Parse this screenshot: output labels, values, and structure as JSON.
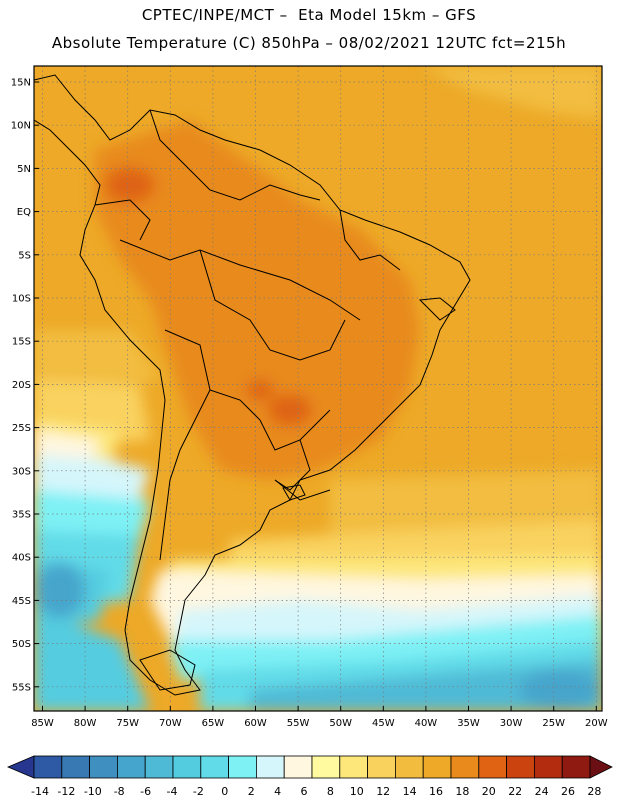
{
  "header": {
    "title_line1": "CPTEC/INPE/MCT –  Eta Model 15km – GFS",
    "title_line2": "Absolute Temperature (C) 850hPa – 08/02/2021 12UTC fct=215h"
  },
  "map": {
    "lat_labels": [
      "15N",
      "10N",
      "5N",
      "EQ",
      "5S",
      "10S",
      "15S",
      "20S",
      "25S",
      "30S",
      "35S",
      "40S",
      "45S",
      "50S",
      "55S"
    ],
    "lon_labels": [
      "85W",
      "80W",
      "75W",
      "70W",
      "65W",
      "60W",
      "55W",
      "50W",
      "45W",
      "40W",
      "35W",
      "30W",
      "25W",
      "20W"
    ],
    "units": "C",
    "variable": "Absolute Temperature"
  },
  "colorbar": {
    "ticks": [
      "-14",
      "-12",
      "-10",
      "-8",
      "-6",
      "-4",
      "-2",
      "0",
      "2",
      "4",
      "6",
      "8",
      "10",
      "12",
      "14",
      "16",
      "18",
      "20",
      "22",
      "24",
      "26",
      "28"
    ],
    "colors": [
      "#27378f",
      "#2e5aa5",
      "#3879b3",
      "#3f8fc0",
      "#46a5cc",
      "#4fbad6",
      "#54cce0",
      "#62dbe8",
      "#7ef1f5",
      "#d5f6fb",
      "#fff7e0",
      "#fffaa0",
      "#fde77b",
      "#f9d25e",
      "#f2bd3f",
      "#eda927",
      "#e88a1c",
      "#df6313",
      "#cb4410",
      "#b32c10",
      "#8e1a12",
      "#6a0f14"
    ]
  }
}
